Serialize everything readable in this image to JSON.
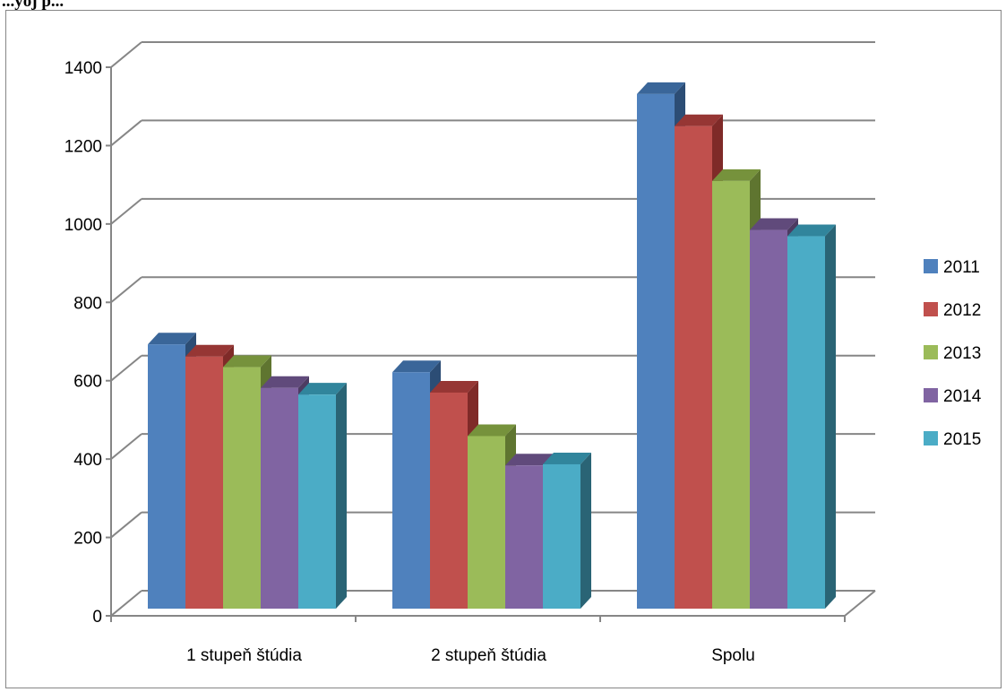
{
  "heading": "...yoj p...",
  "chart_data": {
    "type": "bar",
    "style": "3d-clustered-column",
    "title": "",
    "xlabel": "",
    "ylabel": "",
    "categories": [
      "1 stupeň štúdia",
      "2 stupeň štúdia",
      "Spolu"
    ],
    "series": [
      {
        "name": "2011",
        "values": [
          711,
          640,
          1350
        ],
        "color": "#4F81BD",
        "side": "#2C4D75",
        "top": "#3A6699"
      },
      {
        "name": "2012",
        "values": [
          680,
          588,
          1268
        ],
        "color": "#C0504D",
        "side": "#7F2A28",
        "top": "#963634"
      },
      {
        "name": "2013",
        "values": [
          653,
          477,
          1128
        ],
        "color": "#9BBB59",
        "side": "#5F7530",
        "top": "#76923C"
      },
      {
        "name": "2014",
        "values": [
          600,
          402,
          1003
        ],
        "color": "#8064A2",
        "side": "#4D3B62",
        "top": "#604A7B"
      },
      {
        "name": "2015",
        "values": [
          583,
          405,
          987
        ],
        "color": "#4BACC6",
        "side": "#2A6475",
        "top": "#31859C"
      }
    ],
    "ylim": [
      0,
      1400
    ],
    "yticks": [
      "0",
      "200",
      "400",
      "600",
      "800",
      "1000",
      "1200",
      "1400"
    ],
    "grid": true,
    "legend": "right"
  }
}
